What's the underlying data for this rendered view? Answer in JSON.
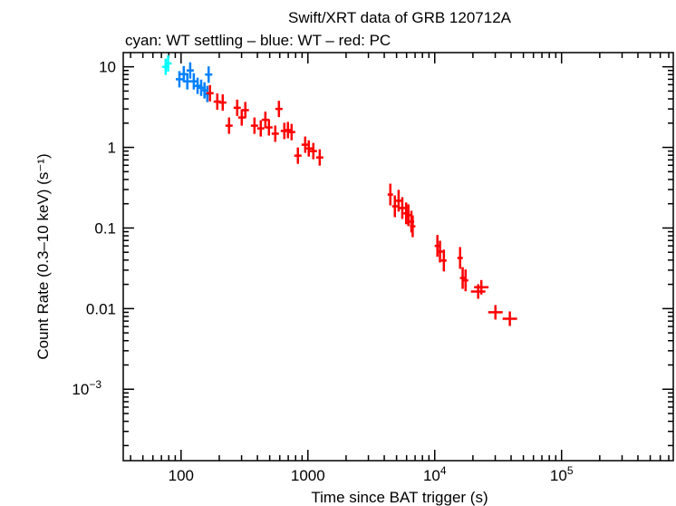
{
  "chart_data": {
    "type": "scatter",
    "title": "Swift/XRT data of GRB 120712A",
    "subtitle": "cyan: WT settling – blue: WT – red: PC",
    "xlabel": "Time since BAT trigger (s)",
    "ylabel": "Count Rate (0.3–10 keV) (s⁻¹)",
    "xscale": "log",
    "yscale": "log",
    "xlim": [
      35,
      760000
    ],
    "ylim": [
      0.00013,
      15
    ],
    "grid": false,
    "x_ticks": [
      {
        "value": 100,
        "label": "100"
      },
      {
        "value": 1000,
        "label": "1000"
      },
      {
        "value": 10000,
        "label": "10",
        "sup": "4"
      },
      {
        "value": 100000,
        "label": "10",
        "sup": "5"
      }
    ],
    "y_ticks": [
      {
        "value": 10,
        "label": "10"
      },
      {
        "value": 1,
        "label": "1"
      },
      {
        "value": 0.1,
        "label": "0.1"
      },
      {
        "value": 0.01,
        "label": "0.01"
      },
      {
        "value": 0.001,
        "label": "10",
        "sup": "−3"
      }
    ],
    "series": [
      {
        "name": "WT settling",
        "color": "#00ffff",
        "points": [
          [
            75.6,
            10.0
          ],
          [
            79,
            11.0
          ]
        ]
      },
      {
        "name": "WT",
        "color": "#0080ff",
        "points": [
          [
            97,
            7.0
          ],
          [
            105,
            8.1
          ],
          [
            112,
            6.6
          ],
          [
            118,
            9.0
          ],
          [
            126,
            6.6
          ],
          [
            135,
            5.8
          ],
          [
            144,
            5.5
          ],
          [
            153,
            5.1
          ],
          [
            161,
            4.6
          ],
          [
            165,
            8.0
          ]
        ]
      },
      {
        "name": "PC",
        "color": "#ff0000",
        "points": [
          [
            169,
            4.7
          ],
          [
            193,
            3.7
          ],
          [
            213,
            3.6
          ],
          [
            239,
            1.86
          ],
          [
            277,
            3.1
          ],
          [
            301,
            2.35
          ],
          [
            321,
            2.9
          ],
          [
            379,
            1.86
          ],
          [
            425,
            1.72
          ],
          [
            462,
            2.2
          ],
          [
            493,
            1.77
          ],
          [
            553,
            1.48
          ],
          [
            591,
            3.0
          ],
          [
            652,
            1.6
          ],
          [
            696,
            1.64
          ],
          [
            744,
            1.55
          ],
          [
            834,
            0.79
          ],
          [
            952,
            1.08
          ],
          [
            1016,
            0.97
          ],
          [
            1104,
            0.9
          ],
          [
            1239,
            0.75
          ],
          [
            4467,
            0.26
          ],
          [
            4850,
            0.186
          ],
          [
            5190,
            0.218
          ],
          [
            5550,
            0.177
          ],
          [
            5950,
            0.152
          ],
          [
            6200,
            0.144
          ],
          [
            6550,
            0.12
          ],
          [
            6700,
            0.105
          ],
          [
            10500,
            0.06
          ],
          [
            11000,
            0.051
          ],
          [
            11800,
            0.0395
          ],
          [
            15850,
            0.0425
          ],
          [
            16600,
            0.024
          ],
          [
            17500,
            0.0224
          ],
          [
            22000,
            0.0163
          ],
          [
            23300,
            0.0184
          ],
          [
            30100,
            0.009
          ],
          [
            39100,
            0.0075
          ]
        ]
      }
    ]
  }
}
